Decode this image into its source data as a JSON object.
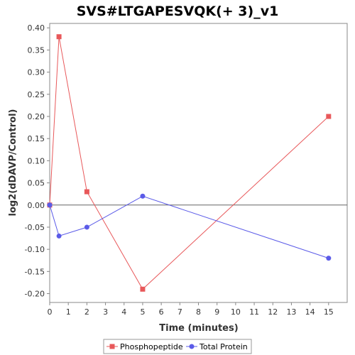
{
  "chart_data": {
    "type": "line",
    "title": "SVS#LTGAPESVQK(+ 3)_v1",
    "xlabel": "Time (minutes)",
    "ylabel": "log2(dDAVP/Control)",
    "xlim": [
      0,
      16
    ],
    "ylim": [
      -0.22,
      0.41
    ],
    "x_ticks": [
      "0",
      "1",
      "2",
      "3",
      "4",
      "5",
      "6",
      "7",
      "8",
      "9",
      "10",
      "11",
      "12",
      "13",
      "14",
      "15"
    ],
    "y_ticks": [
      "0.40",
      "0.35",
      "0.30",
      "0.25",
      "0.20",
      "0.15",
      "0.10",
      "0.05",
      "0.00",
      "-0.05",
      "-0.10",
      "-0.15",
      "-0.20"
    ],
    "grid": false,
    "zero_line": true,
    "legend_position": "bottom",
    "series": [
      {
        "name": "Phosphopeptide",
        "color": "#e8585a",
        "marker": "square",
        "x": [
          0,
          0.5,
          2,
          5,
          15
        ],
        "y": [
          0.0,
          0.38,
          0.03,
          -0.19,
          0.2
        ]
      },
      {
        "name": "Total Protein",
        "color": "#5b5be8",
        "marker": "circle",
        "x": [
          0,
          0.5,
          2,
          5,
          15
        ],
        "y": [
          0.0,
          -0.07,
          -0.05,
          0.02,
          -0.12
        ]
      }
    ]
  }
}
